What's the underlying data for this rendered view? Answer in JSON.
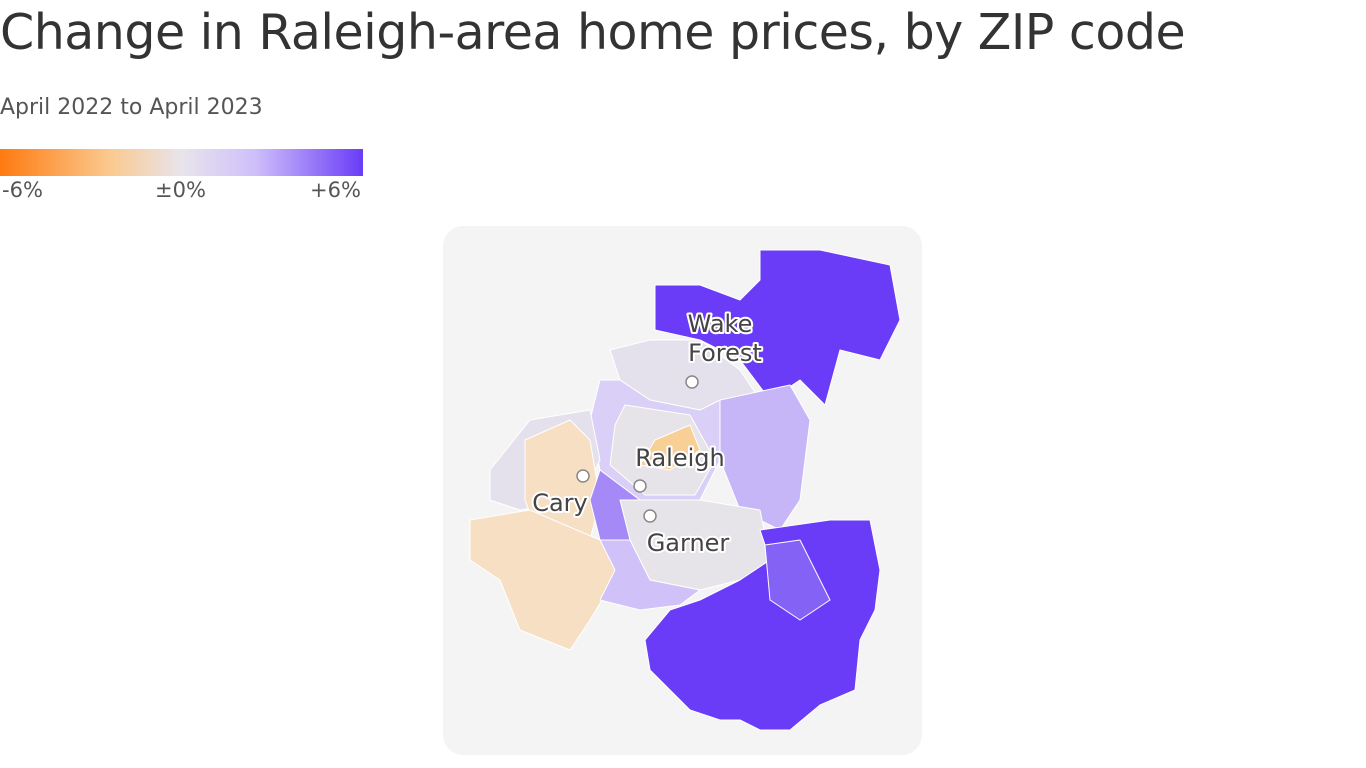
{
  "header": {
    "title": "Change in Raleigh-area home prices, by ZIP code",
    "subtitle": "April 2022 to April 2023"
  },
  "legend": {
    "labels": [
      "-6%",
      "±0%",
      "+6%"
    ]
  },
  "map": {
    "places": [
      {
        "lines": [
          "Wake",
          "Forest"
        ]
      },
      {
        "lines": [
          "Raleigh"
        ]
      },
      {
        "lines": [
          "Cary"
        ]
      },
      {
        "lines": [
          "Garner"
        ]
      }
    ]
  }
}
